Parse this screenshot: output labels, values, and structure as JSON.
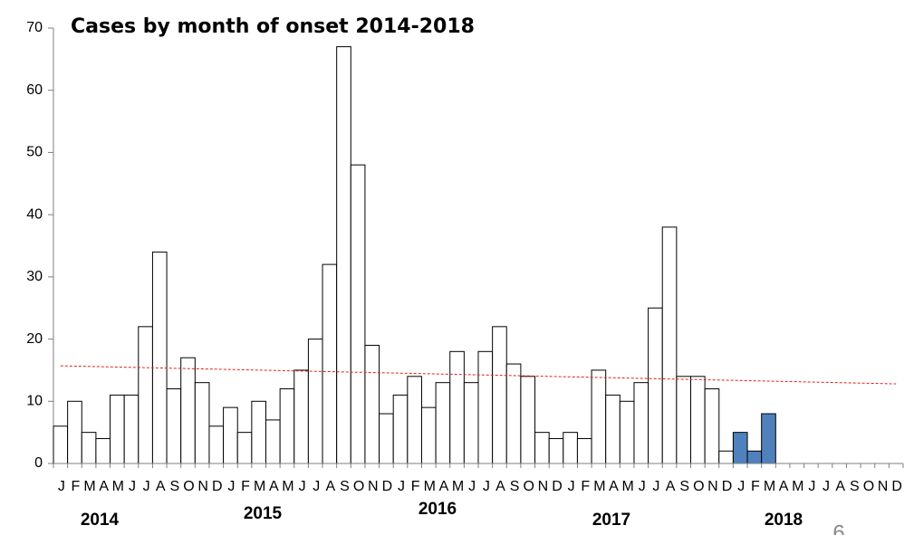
{
  "chart_data": {
    "type": "bar",
    "title": "Cases by month of onset 2014-2018",
    "categories": [
      "J",
      "F",
      "M",
      "A",
      "M",
      "J",
      "J",
      "A",
      "S",
      "O",
      "N",
      "D",
      "J",
      "F",
      "M",
      "A",
      "M",
      "J",
      "J",
      "A",
      "S",
      "O",
      "N",
      "D",
      "J",
      "F",
      "M",
      "A",
      "M",
      "J",
      "J",
      "A",
      "S",
      "O",
      "N",
      "D",
      "J",
      "F",
      "M",
      "A",
      "M",
      "J",
      "J",
      "A",
      "S",
      "O",
      "N",
      "D",
      "J",
      "F",
      "M",
      "A",
      "M",
      "J",
      "J",
      "A",
      "S",
      "O",
      "N",
      "D"
    ],
    "groups": [
      "2014",
      "2015",
      "2016",
      "2017",
      "2018"
    ],
    "series": [
      {
        "color": "#ffffff",
        "values": [
          6,
          10,
          5,
          4,
          11,
          11,
          22,
          34,
          12,
          17,
          13,
          6,
          9,
          5,
          10,
          7,
          12,
          15,
          20,
          32,
          67,
          48,
          19,
          8,
          11,
          14,
          9,
          13,
          18,
          13,
          18,
          22,
          16,
          14,
          5,
          4,
          5,
          4,
          15,
          11,
          10,
          13,
          25,
          38,
          14,
          14,
          12,
          2,
          null,
          null,
          null,
          null,
          null,
          null,
          null,
          null,
          null,
          null,
          null,
          null
        ]
      },
      {
        "color": "#4f81bd",
        "values": [
          null,
          null,
          null,
          null,
          null,
          null,
          null,
          null,
          null,
          null,
          null,
          null,
          null,
          null,
          null,
          null,
          null,
          null,
          null,
          null,
          null,
          null,
          null,
          null,
          null,
          null,
          null,
          null,
          null,
          null,
          null,
          null,
          null,
          null,
          null,
          null,
          null,
          null,
          null,
          null,
          null,
          null,
          null,
          null,
          null,
          null,
          null,
          null,
          5,
          2,
          8,
          null,
          null,
          null,
          null,
          null,
          null,
          null,
          null,
          null
        ]
      }
    ],
    "trendline": {
      "color": "#e0201b",
      "values": [
        15.7,
        12.8
      ]
    },
    "ylim": [
      0,
      70
    ],
    "yticks": [
      0,
      10,
      20,
      30,
      40,
      50,
      60,
      70
    ],
    "page_number": "6"
  }
}
